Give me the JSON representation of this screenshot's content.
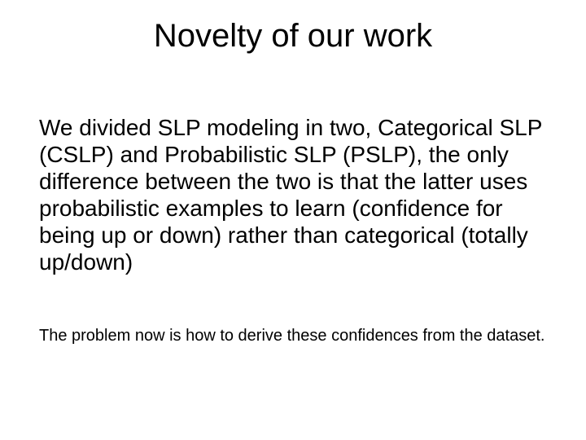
{
  "slide": {
    "title": "Novelty of our work",
    "body_main": "We divided SLP modeling in two, Categorical SLP (CSLP) and Probabilistic SLP (PSLP), the only difference between the two is that the latter uses probabilistic examples to learn (confidence for being up or down) rather than categorical (totally up/down)",
    "body_sub": "The problem now is how to derive these confidences from the dataset.",
    "background_color": "#ffffff",
    "text_color": "#000000",
    "title_fontsize": 40,
    "body_main_fontsize": 28,
    "body_sub_fontsize": 20,
    "font_family": "Arial"
  }
}
